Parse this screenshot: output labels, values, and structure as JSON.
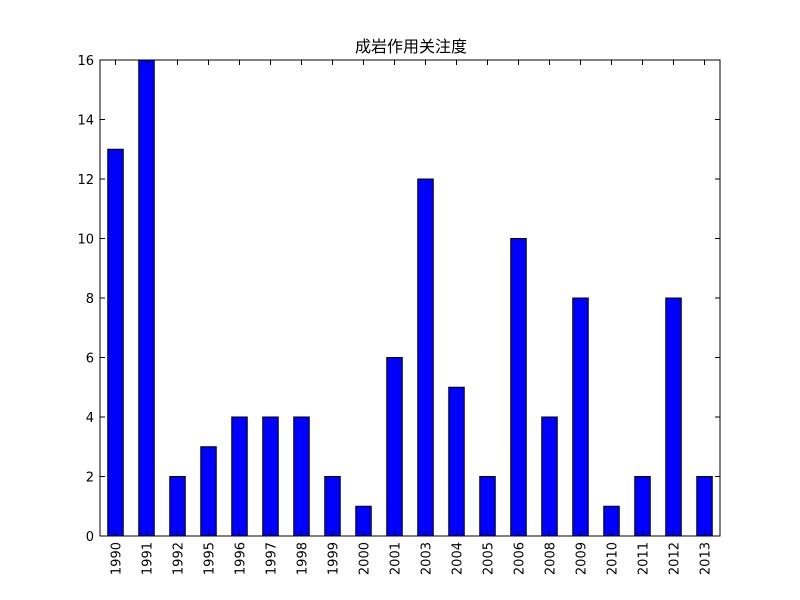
{
  "chart_data": {
    "type": "bar",
    "title": "成岩作用关注度",
    "xlabel": "",
    "ylabel": "",
    "categories": [
      "1990",
      "1991",
      "1992",
      "1995",
      "1996",
      "1997",
      "1998",
      "1999",
      "2000",
      "2001",
      "2003",
      "2004",
      "2005",
      "2006",
      "2008",
      "2009",
      "2010",
      "2011",
      "2012",
      "2013"
    ],
    "values": [
      13,
      16,
      2,
      3,
      4,
      4,
      4,
      2,
      1,
      6,
      12,
      5,
      2,
      10,
      4,
      8,
      1,
      2,
      8,
      2
    ],
    "ylim": [
      0,
      16
    ],
    "yticks": [
      0,
      2,
      4,
      6,
      8,
      10,
      12,
      14,
      16
    ],
    "grid": false,
    "legend": "none",
    "colors": {
      "bar": "#0000ff",
      "edge": "#000000",
      "axes": "#000000"
    }
  }
}
